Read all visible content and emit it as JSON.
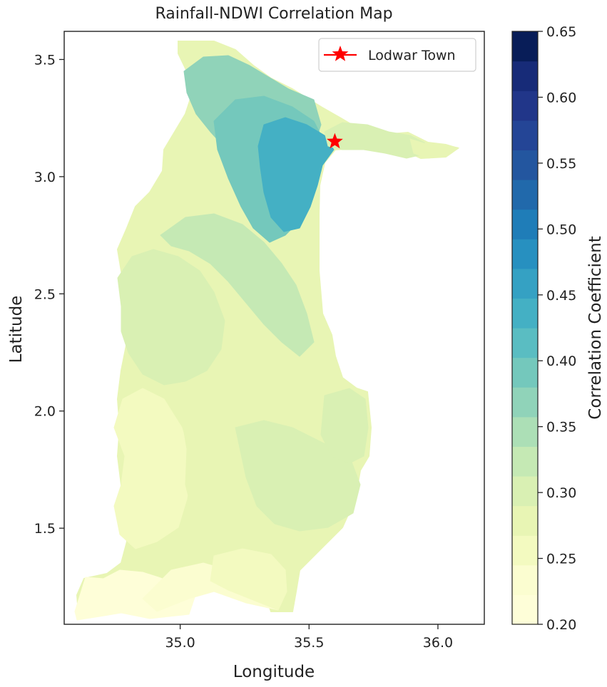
{
  "chart_data": {
    "type": "heatmap",
    "title": "Rainfall-NDWI Correlation Map",
    "xlabel": "Longitude",
    "ylabel": "Latitude",
    "xlim": [
      34.55,
      36.18
    ],
    "ylim": [
      1.09,
      3.62
    ],
    "x_ticks": [
      "35.0",
      "35.5",
      "36.0"
    ],
    "y_ticks": [
      "1.5",
      "2.0",
      "2.5",
      "3.0",
      "3.5"
    ],
    "grid": false,
    "legend": {
      "placement": "top-right",
      "entries": [
        {
          "label": "Lodwar Town",
          "color": "#ff0000",
          "marker": "star"
        }
      ]
    },
    "colorbar": {
      "label": "Correlation Coefficient",
      "colormap": "YlGnBu",
      "range": [
        0.2,
        0.65
      ],
      "tick_labels": [
        "0.20",
        "0.25",
        "0.30",
        "0.35",
        "0.40",
        "0.45",
        "0.50",
        "0.55",
        "0.60",
        "0.65"
      ],
      "colors": [
        "#fefed8",
        "#fbfdd0",
        "#f3fac0",
        "#e8f5b4",
        "#d9f0b3",
        "#c5e9b4",
        "#acdfb6",
        "#90d3b9",
        "#74c8bc",
        "#5abdc2",
        "#44b0c4",
        "#35a1c3",
        "#2790c0",
        "#1f7db8",
        "#2169ab",
        "#23569f",
        "#244596",
        "#213689",
        "#172b78",
        "#081d58"
      ]
    },
    "points": [
      {
        "label": "Lodwar Town",
        "lon": 35.6,
        "lat": 3.15
      }
    ],
    "region_values": [
      {
        "name": "southern-tip",
        "value": 0.215
      },
      {
        "name": "southern-base",
        "value": 0.235
      },
      {
        "name": "southern-east",
        "value": 0.26
      },
      {
        "name": "middle-west",
        "value": 0.255
      },
      {
        "name": "middle-centre",
        "value": 0.27
      },
      {
        "name": "middle-east",
        "value": 0.295
      },
      {
        "name": "middle-east-bulge",
        "value": 0.31
      },
      {
        "name": "upper-middle",
        "value": 0.305
      },
      {
        "name": "northern-band",
        "value": 0.33
      },
      {
        "name": "northern-upper",
        "value": 0.36
      },
      {
        "name": "northern-core",
        "value": 0.395
      },
      {
        "name": "lodwar-centre",
        "value": 0.43
      },
      {
        "name": "eastern-arm",
        "value": 0.3
      },
      {
        "name": "eastern-tip",
        "value": 0.27
      }
    ]
  }
}
